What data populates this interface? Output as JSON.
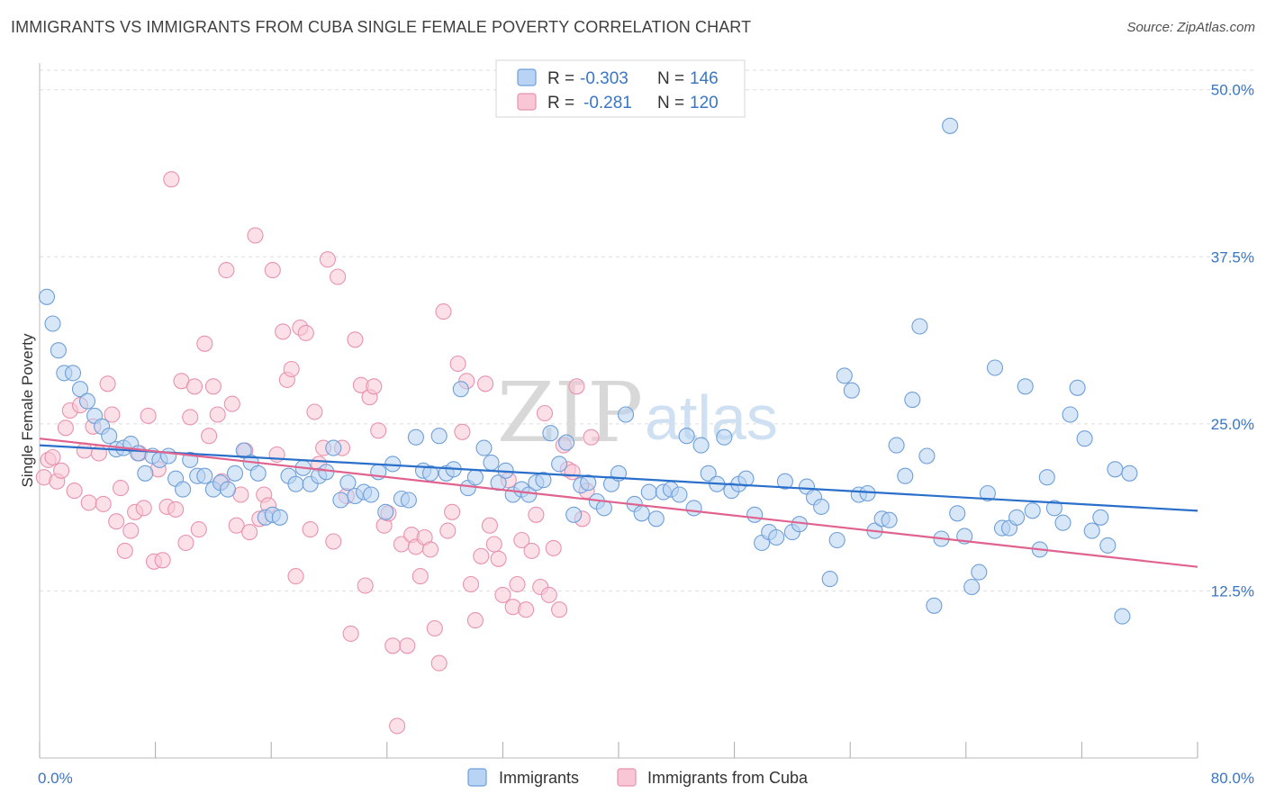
{
  "header": {
    "title": "IMMIGRANTS VS IMMIGRANTS FROM CUBA SINGLE FEMALE POVERTY CORRELATION CHART",
    "source": "Source: ZipAtlas.com"
  },
  "watermark": {
    "zip": "ZIP",
    "atlas": "atlas"
  },
  "legend": {
    "rows": [
      {
        "r_label": "R =",
        "r_value": "-0.303",
        "n_label": "N =",
        "n_value": "146",
        "color": "#a9c9f0"
      },
      {
        "r_label": "R =",
        "r_value": "-0.281",
        "n_label": "N =",
        "n_value": "120",
        "color": "#f6b5c8"
      }
    ]
  },
  "colors": {
    "blue_fill": "#b8d3f3",
    "blue_stroke": "#6f9fd8",
    "blue_line": "#2a6fca",
    "pink_fill": "#f9c6d5",
    "pink_stroke": "#e893ae",
    "pink_line": "#e0638f",
    "grid": "#dddddd",
    "axis_label": "#3a76c4"
  },
  "chart_data": {
    "type": "scatter",
    "title": "IMMIGRANTS VS IMMIGRANTS FROM CUBA SINGLE FEMALE POVERTY CORRELATION CHART",
    "xlabel": "",
    "ylabel": "Single Female Poverty",
    "xlim": [
      0,
      80
    ],
    "ylim": [
      0,
      52
    ],
    "x_tick_labels": [
      "0.0%",
      "80.0%"
    ],
    "y_ticks": [
      12.5,
      25.0,
      37.5,
      50.0
    ],
    "y_tick_labels": [
      "12.5%",
      "25.0%",
      "37.5%",
      "50.0%"
    ],
    "grid": "horizontal dashed",
    "legend_position": "top-center",
    "series": [
      {
        "name": "Immigrants",
        "r": -0.303,
        "n": 146,
        "trend": {
          "x": [
            0,
            80
          ],
          "y": [
            23.4,
            18.5
          ]
        },
        "points": [
          [
            0.5,
            34.5
          ],
          [
            0.9,
            32.5
          ],
          [
            1.3,
            30.5
          ],
          [
            1.7,
            28.8
          ],
          [
            2.3,
            28.8
          ],
          [
            2.8,
            27.6
          ],
          [
            3.3,
            26.7
          ],
          [
            3.8,
            25.6
          ],
          [
            4.3,
            24.8
          ],
          [
            4.8,
            24.1
          ],
          [
            5.3,
            23.1
          ],
          [
            5.8,
            23.2
          ],
          [
            6.3,
            23.5
          ],
          [
            6.8,
            22.8
          ],
          [
            7.3,
            21.3
          ],
          [
            7.8,
            22.6
          ],
          [
            8.3,
            22.3
          ],
          [
            8.9,
            22.6
          ],
          [
            9.4,
            20.9
          ],
          [
            9.9,
            20.1
          ],
          [
            10.4,
            22.3
          ],
          [
            10.9,
            21.1
          ],
          [
            11.4,
            21.1
          ],
          [
            12.0,
            20.1
          ],
          [
            12.5,
            20.6
          ],
          [
            13.0,
            20.1
          ],
          [
            13.5,
            21.3
          ],
          [
            14.1,
            23.0
          ],
          [
            14.6,
            22.1
          ],
          [
            15.1,
            21.3
          ],
          [
            15.6,
            18.0
          ],
          [
            16.1,
            18.2
          ],
          [
            16.6,
            18.0
          ],
          [
            17.2,
            21.1
          ],
          [
            17.7,
            20.5
          ],
          [
            18.2,
            21.7
          ],
          [
            18.7,
            20.5
          ],
          [
            19.3,
            21.1
          ],
          [
            19.8,
            21.4
          ],
          [
            20.3,
            23.2
          ],
          [
            20.8,
            19.3
          ],
          [
            21.3,
            20.6
          ],
          [
            21.8,
            19.6
          ],
          [
            22.4,
            19.9
          ],
          [
            22.9,
            19.7
          ],
          [
            23.4,
            21.4
          ],
          [
            23.9,
            18.4
          ],
          [
            24.4,
            22.0
          ],
          [
            25.0,
            19.4
          ],
          [
            25.5,
            19.3
          ],
          [
            26.0,
            24.0
          ],
          [
            26.5,
            21.5
          ],
          [
            27.0,
            21.3
          ],
          [
            27.6,
            24.1
          ],
          [
            28.1,
            21.3
          ],
          [
            28.6,
            21.6
          ],
          [
            29.1,
            27.6
          ],
          [
            29.6,
            20.2
          ],
          [
            30.1,
            21.0
          ],
          [
            30.7,
            23.2
          ],
          [
            31.2,
            22.1
          ],
          [
            31.7,
            20.6
          ],
          [
            32.2,
            21.5
          ],
          [
            32.7,
            19.7
          ],
          [
            33.3,
            20.1
          ],
          [
            33.8,
            19.7
          ],
          [
            34.3,
            20.6
          ],
          [
            34.8,
            20.8
          ],
          [
            35.3,
            24.3
          ],
          [
            35.9,
            22.0
          ],
          [
            36.4,
            23.6
          ],
          [
            36.9,
            18.2
          ],
          [
            37.4,
            20.4
          ],
          [
            37.9,
            20.6
          ],
          [
            38.5,
            19.2
          ],
          [
            39.0,
            18.7
          ],
          [
            39.5,
            20.5
          ],
          [
            40.0,
            21.3
          ],
          [
            40.5,
            25.7
          ],
          [
            41.1,
            19.0
          ],
          [
            41.6,
            18.3
          ],
          [
            42.1,
            19.9
          ],
          [
            42.6,
            17.9
          ],
          [
            43.1,
            19.9
          ],
          [
            43.6,
            20.1
          ],
          [
            44.2,
            19.7
          ],
          [
            44.7,
            24.1
          ],
          [
            45.2,
            18.7
          ],
          [
            45.7,
            23.4
          ],
          [
            46.2,
            21.3
          ],
          [
            46.8,
            20.5
          ],
          [
            47.3,
            24.0
          ],
          [
            47.8,
            20.0
          ],
          [
            48.3,
            20.5
          ],
          [
            48.8,
            20.9
          ],
          [
            49.4,
            18.2
          ],
          [
            49.9,
            16.1
          ],
          [
            50.4,
            16.9
          ],
          [
            50.9,
            16.5
          ],
          [
            51.5,
            20.7
          ],
          [
            52.0,
            16.9
          ],
          [
            52.5,
            17.5
          ],
          [
            53.0,
            20.3
          ],
          [
            53.5,
            19.5
          ],
          [
            54.0,
            18.8
          ],
          [
            54.6,
            13.4
          ],
          [
            55.1,
            16.3
          ],
          [
            55.6,
            28.6
          ],
          [
            56.1,
            27.5
          ],
          [
            56.6,
            19.7
          ],
          [
            57.2,
            19.8
          ],
          [
            57.7,
            17.0
          ],
          [
            58.2,
            17.9
          ],
          [
            58.7,
            17.8
          ],
          [
            59.2,
            23.4
          ],
          [
            59.8,
            21.1
          ],
          [
            60.3,
            26.8
          ],
          [
            60.8,
            32.3
          ],
          [
            61.3,
            22.6
          ],
          [
            61.8,
            11.4
          ],
          [
            62.3,
            16.4
          ],
          [
            62.9,
            47.3
          ],
          [
            63.4,
            18.3
          ],
          [
            63.9,
            16.6
          ],
          [
            64.4,
            12.8
          ],
          [
            64.9,
            13.9
          ],
          [
            65.5,
            19.8
          ],
          [
            66.0,
            29.2
          ],
          [
            66.5,
            17.2
          ],
          [
            67.0,
            17.2
          ],
          [
            67.5,
            18.0
          ],
          [
            68.1,
            27.8
          ],
          [
            68.6,
            18.5
          ],
          [
            69.1,
            15.6
          ],
          [
            69.6,
            21.0
          ],
          [
            70.1,
            18.7
          ],
          [
            70.7,
            17.6
          ],
          [
            71.2,
            25.7
          ],
          [
            71.7,
            27.7
          ],
          [
            72.2,
            23.9
          ],
          [
            72.7,
            17.0
          ],
          [
            73.3,
            18.0
          ],
          [
            73.8,
            15.9
          ],
          [
            74.3,
            21.6
          ],
          [
            74.8,
            10.6
          ],
          [
            75.3,
            21.3
          ]
        ]
      },
      {
        "name": "Immigrants from Cuba",
        "r": -0.281,
        "n": 120,
        "trend": {
          "x": [
            0,
            80
          ],
          "y": [
            23.9,
            14.3
          ]
        },
        "points": [
          [
            0.3,
            21.0
          ],
          [
            0.6,
            22.3
          ],
          [
            0.9,
            22.5
          ],
          [
            1.2,
            20.7
          ],
          [
            1.5,
            21.5
          ],
          [
            1.8,
            24.7
          ],
          [
            2.1,
            26.0
          ],
          [
            2.4,
            20.0
          ],
          [
            2.8,
            26.4
          ],
          [
            3.1,
            23.0
          ],
          [
            3.4,
            19.1
          ],
          [
            3.7,
            24.8
          ],
          [
            4.1,
            22.8
          ],
          [
            4.4,
            19.0
          ],
          [
            4.7,
            28.0
          ],
          [
            5.0,
            25.7
          ],
          [
            5.3,
            17.7
          ],
          [
            5.6,
            20.2
          ],
          [
            5.9,
            15.5
          ],
          [
            6.3,
            17.0
          ],
          [
            6.6,
            18.4
          ],
          [
            6.9,
            22.8
          ],
          [
            7.2,
            18.7
          ],
          [
            7.5,
            25.6
          ],
          [
            7.9,
            14.7
          ],
          [
            8.2,
            21.6
          ],
          [
            8.5,
            14.8
          ],
          [
            8.8,
            18.8
          ],
          [
            9.1,
            43.3
          ],
          [
            9.4,
            18.6
          ],
          [
            9.8,
            28.2
          ],
          [
            10.1,
            16.1
          ],
          [
            10.4,
            25.5
          ],
          [
            10.7,
            27.8
          ],
          [
            11.0,
            17.1
          ],
          [
            11.4,
            31.0
          ],
          [
            11.7,
            24.1
          ],
          [
            12.0,
            27.8
          ],
          [
            12.3,
            25.7
          ],
          [
            12.6,
            20.7
          ],
          [
            12.9,
            36.5
          ],
          [
            13.3,
            26.5
          ],
          [
            13.6,
            17.4
          ],
          [
            13.9,
            19.7
          ],
          [
            14.2,
            23.0
          ],
          [
            14.5,
            16.9
          ],
          [
            14.9,
            39.1
          ],
          [
            15.2,
            17.9
          ],
          [
            15.5,
            19.7
          ],
          [
            15.8,
            18.9
          ],
          [
            16.1,
            36.5
          ],
          [
            16.4,
            22.7
          ],
          [
            16.8,
            31.9
          ],
          [
            17.1,
            28.3
          ],
          [
            17.4,
            29.1
          ],
          [
            17.7,
            13.6
          ],
          [
            18.0,
            32.2
          ],
          [
            18.4,
            31.8
          ],
          [
            18.7,
            17.1
          ],
          [
            19.0,
            25.9
          ],
          [
            19.3,
            22.0
          ],
          [
            19.6,
            23.2
          ],
          [
            19.9,
            37.3
          ],
          [
            20.3,
            16.2
          ],
          [
            20.6,
            36.0
          ],
          [
            20.9,
            23.2
          ],
          [
            21.2,
            19.6
          ],
          [
            21.5,
            9.3
          ],
          [
            21.8,
            31.3
          ],
          [
            22.2,
            27.9
          ],
          [
            22.5,
            12.9
          ],
          [
            22.8,
            27.0
          ],
          [
            23.1,
            27.8
          ],
          [
            23.4,
            24.5
          ],
          [
            23.8,
            17.4
          ],
          [
            24.1,
            18.3
          ],
          [
            24.4,
            8.4
          ],
          [
            24.7,
            2.4
          ],
          [
            25.0,
            16.0
          ],
          [
            25.4,
            8.4
          ],
          [
            25.7,
            16.7
          ],
          [
            26.0,
            15.8
          ],
          [
            26.3,
            13.6
          ],
          [
            26.6,
            16.5
          ],
          [
            27.0,
            15.6
          ],
          [
            27.3,
            9.7
          ],
          [
            27.6,
            7.1
          ],
          [
            27.9,
            33.4
          ],
          [
            28.2,
            17.0
          ],
          [
            28.5,
            18.4
          ],
          [
            28.9,
            29.5
          ],
          [
            29.2,
            24.4
          ],
          [
            29.5,
            28.2
          ],
          [
            29.8,
            13.0
          ],
          [
            30.1,
            10.3
          ],
          [
            30.5,
            15.1
          ],
          [
            30.8,
            28.0
          ],
          [
            31.1,
            17.4
          ],
          [
            31.4,
            16.0
          ],
          [
            31.7,
            14.9
          ],
          [
            32.0,
            12.2
          ],
          [
            32.4,
            20.8
          ],
          [
            32.7,
            11.3
          ],
          [
            33.0,
            13.0
          ],
          [
            33.3,
            16.3
          ],
          [
            33.6,
            11.1
          ],
          [
            34.0,
            15.5
          ],
          [
            34.3,
            18.2
          ],
          [
            34.6,
            12.8
          ],
          [
            34.9,
            25.8
          ],
          [
            35.2,
            12.2
          ],
          [
            35.5,
            15.7
          ],
          [
            35.9,
            11.1
          ],
          [
            36.2,
            23.4
          ],
          [
            36.5,
            21.6
          ],
          [
            36.8,
            21.4
          ],
          [
            37.1,
            27.8
          ],
          [
            37.5,
            17.9
          ],
          [
            37.8,
            20.0
          ],
          [
            38.1,
            24.0
          ]
        ]
      }
    ]
  },
  "bottom_legend": {
    "items": [
      "Immigrants",
      "Immigrants from Cuba"
    ]
  }
}
